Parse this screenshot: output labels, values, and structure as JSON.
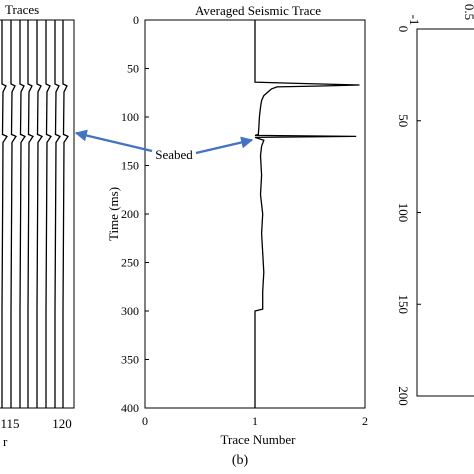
{
  "chart_data": [
    {
      "panel": "left",
      "type": "line",
      "title": "Traces",
      "x_tick_labels": [
        "115",
        "120"
      ],
      "xlabel_fragment": "r",
      "trace_count": 8,
      "wavelet_times": [
        68,
        120
      ]
    },
    {
      "panel": "middle",
      "type": "line",
      "title": "Averaged Seismic Trace",
      "xlabel": "Trace Number",
      "ylabel": "Time (ms)",
      "xlim": [
        0,
        2
      ],
      "ylim": [
        0,
        400
      ],
      "y_inverted": true,
      "x_ticks": [
        0,
        1,
        2
      ],
      "x_tick_labels": [
        "0",
        "1",
        "2"
      ],
      "y_ticks": [
        0,
        50,
        100,
        150,
        200,
        250,
        300,
        350,
        400
      ],
      "y_tick_labels": [
        "0",
        "50",
        "100",
        "150",
        "200",
        "250",
        "300",
        "350",
        "400"
      ],
      "series": [
        {
          "points": [
            [
              1.0,
              0
            ],
            [
              1.0,
              63
            ],
            [
              1.0,
              64
            ],
            [
              1.3,
              65
            ],
            [
              1.95,
              67
            ],
            [
              1.6,
              68
            ],
            [
              1.2,
              69
            ],
            [
              1.15,
              71
            ],
            [
              1.12,
              74
            ],
            [
              1.08,
              78
            ],
            [
              1.06,
              83
            ],
            [
              1.05,
              90
            ],
            [
              1.04,
              100
            ],
            [
              1.035,
              110
            ],
            [
              1.03,
              118
            ],
            [
              1.0,
              119
            ],
            [
              1.92,
              120
            ],
            [
              1.0,
              121
            ],
            [
              1.08,
              124
            ],
            [
              1.06,
              130
            ],
            [
              1.05,
              140
            ],
            [
              1.06,
              160
            ],
            [
              1.05,
              180
            ],
            [
              1.07,
              200
            ],
            [
              1.06,
              220
            ],
            [
              1.07,
              240
            ],
            [
              1.08,
              260
            ],
            [
              1.07,
              280
            ],
            [
              1.07,
              298
            ],
            [
              1.0,
              300
            ],
            [
              1.0,
              400
            ]
          ]
        }
      ]
    },
    {
      "panel": "right",
      "type": "line",
      "ylim": [
        0,
        200
      ],
      "y_inverted": true,
      "y_ticks": [
        0,
        50,
        100,
        150,
        200
      ],
      "y_tick_labels": [
        "0",
        "50",
        "100",
        "150",
        "200"
      ],
      "x_tick_labels_partial": [
        "-1",
        "0.5"
      ]
    }
  ],
  "annotation": {
    "label": "Seabed"
  },
  "caption": "(b)",
  "colors": {
    "arrow": "#4472c4",
    "trace": "#000000"
  }
}
